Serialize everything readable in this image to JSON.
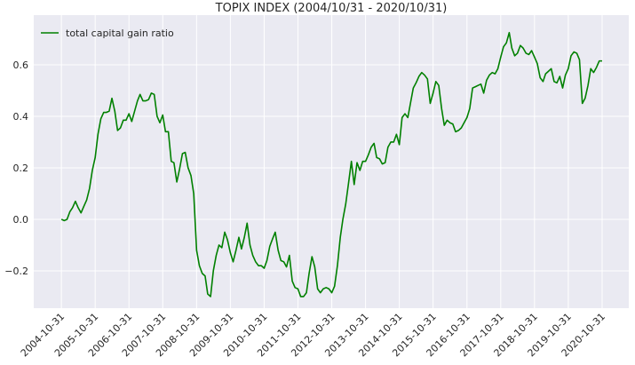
{
  "chart_data": {
    "type": "line",
    "title": "TOPIX INDEX (2004/10/31 - 2020/10/31)",
    "x": [
      "2004-10-31",
      "2004-11-30",
      "2004-12-31",
      "2005-01-31",
      "2005-02-28",
      "2005-03-31",
      "2005-04-30",
      "2005-05-31",
      "2005-06-30",
      "2005-07-31",
      "2005-08-31",
      "2005-09-30",
      "2005-10-31",
      "2005-11-30",
      "2005-12-31",
      "2006-01-31",
      "2006-02-28",
      "2006-03-31",
      "2006-04-30",
      "2006-05-31",
      "2006-06-30",
      "2006-07-31",
      "2006-08-31",
      "2006-09-30",
      "2006-10-31",
      "2006-11-30",
      "2006-12-31",
      "2007-01-31",
      "2007-02-28",
      "2007-03-31",
      "2007-04-30",
      "2007-05-31",
      "2007-06-30",
      "2007-07-31",
      "2007-08-31",
      "2007-09-30",
      "2007-10-31",
      "2007-11-30",
      "2007-12-31",
      "2008-01-31",
      "2008-02-29",
      "2008-03-31",
      "2008-04-30",
      "2008-05-31",
      "2008-06-30",
      "2008-07-31",
      "2008-08-31",
      "2008-09-30",
      "2008-10-31",
      "2008-11-30",
      "2008-12-31",
      "2009-01-31",
      "2009-02-28",
      "2009-03-31",
      "2009-04-30",
      "2009-05-31",
      "2009-06-30",
      "2009-07-31",
      "2009-08-31",
      "2009-09-30",
      "2009-10-31",
      "2009-11-30",
      "2009-12-31",
      "2010-01-31",
      "2010-02-28",
      "2010-03-31",
      "2010-04-30",
      "2010-05-31",
      "2010-06-30",
      "2010-07-31",
      "2010-08-31",
      "2010-09-30",
      "2010-10-31",
      "2010-11-30",
      "2010-12-31",
      "2011-01-31",
      "2011-02-28",
      "2011-03-31",
      "2011-04-30",
      "2011-05-31",
      "2011-06-30",
      "2011-07-31",
      "2011-08-31",
      "2011-09-30",
      "2011-10-31",
      "2011-11-30",
      "2011-12-31",
      "2012-01-31",
      "2012-02-29",
      "2012-03-31",
      "2012-04-30",
      "2012-05-31",
      "2012-06-30",
      "2012-07-31",
      "2012-08-31",
      "2012-09-30",
      "2012-10-31",
      "2012-11-30",
      "2012-12-31",
      "2013-01-31",
      "2013-02-28",
      "2013-03-31",
      "2013-04-30",
      "2013-05-31",
      "2013-06-30",
      "2013-07-31",
      "2013-08-31",
      "2013-09-30",
      "2013-10-31",
      "2013-11-30",
      "2013-12-31",
      "2014-01-31",
      "2014-02-28",
      "2014-03-31",
      "2014-04-30",
      "2014-05-31",
      "2014-06-30",
      "2014-07-31",
      "2014-08-31",
      "2014-09-30",
      "2014-10-31",
      "2014-11-30",
      "2014-12-31",
      "2015-01-31",
      "2015-02-28",
      "2015-03-31",
      "2015-04-30",
      "2015-05-31",
      "2015-06-30",
      "2015-07-31",
      "2015-08-31",
      "2015-09-30",
      "2015-10-31",
      "2015-11-30",
      "2015-12-31",
      "2016-01-31",
      "2016-02-29",
      "2016-03-31",
      "2016-04-30",
      "2016-05-31",
      "2016-06-30",
      "2016-07-31",
      "2016-08-31",
      "2016-09-30",
      "2016-10-31",
      "2016-11-30",
      "2016-12-31",
      "2017-01-31",
      "2017-02-28",
      "2017-03-31",
      "2017-04-30",
      "2017-05-31",
      "2017-06-30",
      "2017-07-31",
      "2017-08-31",
      "2017-09-30",
      "2017-10-31",
      "2017-11-30",
      "2017-12-31",
      "2018-01-31",
      "2018-02-28",
      "2018-03-31",
      "2018-04-30",
      "2018-05-31",
      "2018-06-30",
      "2018-07-31",
      "2018-08-31",
      "2018-09-30",
      "2018-10-31",
      "2018-11-30",
      "2018-12-31",
      "2019-01-31",
      "2019-02-28",
      "2019-03-31",
      "2019-04-30",
      "2019-05-31",
      "2019-06-30",
      "2019-07-31",
      "2019-08-31",
      "2019-09-30",
      "2019-10-31",
      "2019-11-30",
      "2019-12-31",
      "2020-01-31",
      "2020-02-29",
      "2020-03-31",
      "2020-04-30",
      "2020-05-31",
      "2020-06-30",
      "2020-07-31",
      "2020-08-31",
      "2020-09-30",
      "2020-10-31"
    ],
    "series": [
      {
        "name": "total capital gain ratio",
        "color": "#008000",
        "values": [
          0.0,
          -0.005,
          0.0,
          0.03,
          0.045,
          0.07,
          0.045,
          0.025,
          0.05,
          0.075,
          0.12,
          0.19,
          0.24,
          0.33,
          0.39,
          0.415,
          0.415,
          0.42,
          0.47,
          0.42,
          0.345,
          0.355,
          0.385,
          0.385,
          0.41,
          0.38,
          0.42,
          0.46,
          0.485,
          0.46,
          0.46,
          0.465,
          0.49,
          0.485,
          0.4,
          0.375,
          0.405,
          0.34,
          0.34,
          0.225,
          0.22,
          0.145,
          0.195,
          0.255,
          0.26,
          0.2,
          0.17,
          0.1,
          -0.12,
          -0.18,
          -0.21,
          -0.22,
          -0.29,
          -0.3,
          -0.2,
          -0.14,
          -0.1,
          -0.11,
          -0.05,
          -0.08,
          -0.13,
          -0.165,
          -0.12,
          -0.07,
          -0.115,
          -0.07,
          -0.015,
          -0.1,
          -0.14,
          -0.165,
          -0.18,
          -0.18,
          -0.19,
          -0.16,
          -0.105,
          -0.075,
          -0.05,
          -0.12,
          -0.16,
          -0.165,
          -0.185,
          -0.14,
          -0.24,
          -0.265,
          -0.27,
          -0.3,
          -0.3,
          -0.285,
          -0.21,
          -0.145,
          -0.185,
          -0.27,
          -0.285,
          -0.27,
          -0.265,
          -0.27,
          -0.285,
          -0.26,
          -0.18,
          -0.07,
          0.0,
          0.06,
          0.14,
          0.225,
          0.135,
          0.22,
          0.19,
          0.225,
          0.225,
          0.25,
          0.28,
          0.295,
          0.24,
          0.235,
          0.215,
          0.22,
          0.28,
          0.3,
          0.3,
          0.33,
          0.29,
          0.395,
          0.41,
          0.395,
          0.45,
          0.51,
          0.53,
          0.555,
          0.57,
          0.56,
          0.545,
          0.45,
          0.49,
          0.535,
          0.52,
          0.43,
          0.365,
          0.385,
          0.375,
          0.37,
          0.34,
          0.345,
          0.355,
          0.375,
          0.395,
          0.43,
          0.51,
          0.515,
          0.52,
          0.525,
          0.49,
          0.54,
          0.56,
          0.57,
          0.565,
          0.585,
          0.63,
          0.67,
          0.685,
          0.725,
          0.665,
          0.635,
          0.645,
          0.675,
          0.665,
          0.645,
          0.64,
          0.655,
          0.63,
          0.605,
          0.55,
          0.535,
          0.565,
          0.575,
          0.585,
          0.535,
          0.53,
          0.555,
          0.51,
          0.56,
          0.585,
          0.635,
          0.65,
          0.645,
          0.62,
          0.45,
          0.47,
          0.52,
          0.585,
          0.57,
          0.59,
          0.615,
          0.615
        ]
      }
    ],
    "xlim": [
      "2004-01-06",
      "2021-08-15"
    ],
    "xticks": [
      "2004-10-31",
      "2005-10-31",
      "2006-10-31",
      "2007-10-31",
      "2008-10-31",
      "2009-10-31",
      "2010-10-31",
      "2011-10-31",
      "2012-10-31",
      "2013-10-31",
      "2014-10-31",
      "2015-10-31",
      "2016-10-31",
      "2017-10-31",
      "2018-10-31",
      "2019-10-31",
      "2020-10-31"
    ],
    "ylim": [
      -0.345,
      0.793
    ],
    "yticks": [
      {
        "value": -0.2,
        "label": "−0.2"
      },
      {
        "value": 0,
        "label": "0.0"
      },
      0.2,
      0.4,
      0.6
    ],
    "grid": true,
    "legend": "upper left"
  }
}
